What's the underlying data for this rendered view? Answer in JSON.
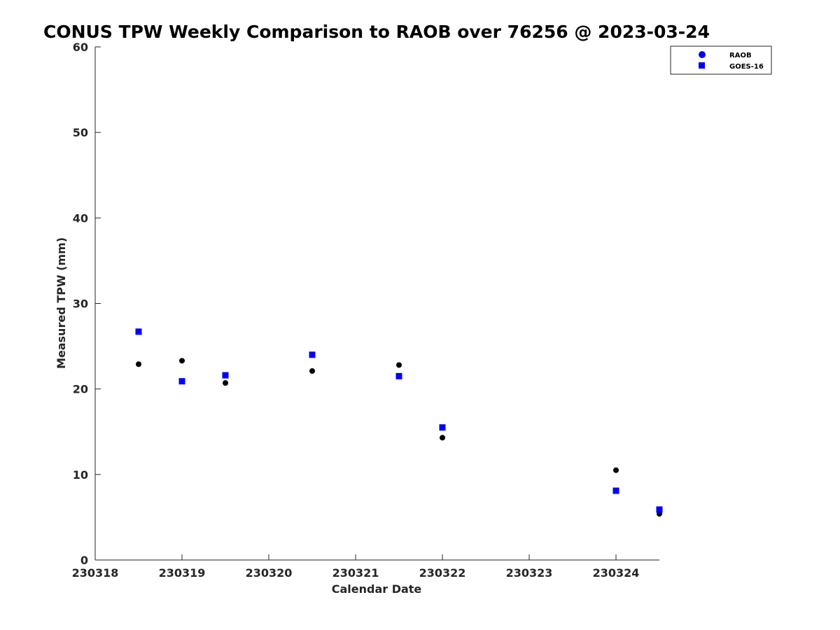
{
  "chart_data": {
    "type": "scatter",
    "title": "CONUS TPW Weekly Comparison to RAOB over 76256 @ 2023-03-24",
    "xlabel": "Calendar Date",
    "ylabel": "Measured TPW (mm)",
    "x_tick_labels": [
      "230318",
      "230319",
      "230320",
      "230321",
      "230322",
      "230323",
      "230324"
    ],
    "x_tick_values": [
      0,
      1,
      2,
      3,
      4,
      5,
      6
    ],
    "y_tick_labels": [
      "0",
      "10",
      "20",
      "30",
      "40",
      "50",
      "60"
    ],
    "y_tick_values": [
      0,
      10,
      20,
      30,
      40,
      50,
      60
    ],
    "xlim": [
      0,
      6.5
    ],
    "ylim": [
      0,
      60
    ],
    "grid": false,
    "legend_position": "top-right",
    "series": [
      {
        "name": "RAOB",
        "marker": "circle",
        "color": "#000000",
        "legend_color": "#0000ff",
        "x": [
          0.5,
          1.0,
          1.5,
          2.5,
          3.5,
          4.0,
          6.0,
          6.5
        ],
        "y": [
          22.9,
          23.3,
          20.7,
          22.1,
          22.8,
          14.3,
          10.5,
          5.4
        ]
      },
      {
        "name": "GOES-16",
        "marker": "square",
        "color": "#0000ff",
        "legend_color": "#0000ff",
        "x": [
          0.5,
          1.0,
          1.5,
          2.5,
          3.5,
          4.0,
          6.0,
          6.5
        ],
        "y": [
          26.7,
          20.9,
          21.6,
          24.0,
          21.5,
          15.5,
          8.1,
          5.9
        ]
      }
    ]
  }
}
